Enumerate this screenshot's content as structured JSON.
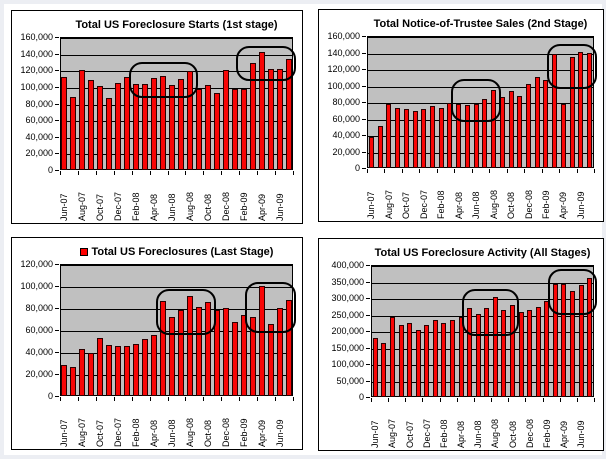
{
  "page": {
    "background": "#eceef3",
    "panel_background": "#ffffff"
  },
  "colors": {
    "bar_fill": "#ff0000",
    "bar_border": "#2a0000",
    "plot_background": "#c0c0c0",
    "gridline": "#000000",
    "annotation_stroke": "#000000",
    "text": "#000000"
  },
  "chart_data": [
    {
      "type": "bar",
      "title": "Total US Foreclosure Starts (1st stage)",
      "has_legend_marker": false,
      "categories": [
        "Jun-07",
        "Jul-07",
        "Aug-07",
        "Sep-07",
        "Oct-07",
        "Nov-07",
        "Dec-07",
        "Jan-08",
        "Feb-08",
        "Mar-08",
        "Apr-08",
        "May-08",
        "Jun-08",
        "Jul-08",
        "Aug-08",
        "Sep-08",
        "Oct-08",
        "Nov-08",
        "Dec-08",
        "Jan-09",
        "Feb-09",
        "Mar-09",
        "Apr-09",
        "May-09",
        "Jun-09",
        "Jul-09"
      ],
      "values": [
        112000,
        88000,
        120000,
        108000,
        101000,
        87000,
        105000,
        112000,
        104000,
        104000,
        111000,
        113000,
        102000,
        110000,
        119000,
        98000,
        102000,
        93000,
        120000,
        97000,
        97000,
        129000,
        142000,
        121000,
        121000,
        134000
      ],
      "x_tick_labels": [
        "Jun-07",
        "Aug-07",
        "Oct-07",
        "Dec-07",
        "Feb-08",
        "Apr-08",
        "Jun-08",
        "Aug-08",
        "Oct-08",
        "Dec-08",
        "Feb-09",
        "Apr-09",
        "Jun-09"
      ],
      "ylim": [
        0,
        160000
      ],
      "ytick_step": 20000,
      "y_tick_labels": [
        "160,000",
        "140,000",
        "120,000",
        "100,000",
        "80,000",
        "60,000",
        "40,000",
        "20,000",
        "0"
      ],
      "grid": true,
      "legend_position": "none",
      "ylabel_width": 48,
      "annotations": [
        {
          "from_bar": 9,
          "to_bar": 15,
          "top": 130000,
          "bottom": 87000
        },
        {
          "from_bar": 21,
          "to_bar": 26,
          "top": 149000,
          "bottom": 107000
        }
      ]
    },
    {
      "type": "bar",
      "title": "Total Notice-of-Trustee Sales (2nd Stage)",
      "has_legend_marker": false,
      "categories": [
        "Jun-07",
        "Jul-07",
        "Aug-07",
        "Sep-07",
        "Oct-07",
        "Nov-07",
        "Dec-07",
        "Jan-08",
        "Feb-08",
        "Mar-08",
        "Apr-08",
        "May-08",
        "Jun-08",
        "Jul-08",
        "Aug-08",
        "Sep-08",
        "Oct-08",
        "Nov-08",
        "Dec-08",
        "Jan-09",
        "Feb-09",
        "Mar-09",
        "Apr-09",
        "May-09",
        "Jun-09",
        "Jul-09"
      ],
      "values": [
        37000,
        51000,
        77000,
        73000,
        71000,
        69000,
        71000,
        75000,
        73000,
        79000,
        77000,
        76000,
        77000,
        84000,
        95000,
        86000,
        93000,
        87000,
        102000,
        110000,
        107000,
        138000,
        77000,
        134000,
        141000,
        139000
      ],
      "x_tick_labels": [
        "Jun-07",
        "Aug-07",
        "Oct-07",
        "Dec-07",
        "Feb-08",
        "Apr-08",
        "Jun-08",
        "Aug-08",
        "Oct-08",
        "Dec-08",
        "Feb-09",
        "Apr-09",
        "Jun-09"
      ],
      "ylim": [
        0,
        160000
      ],
      "ytick_step": 20000,
      "y_tick_labels": [
        "160,000",
        "140,000",
        "120,000",
        "100,000",
        "80,000",
        "60,000",
        "40,000",
        "20,000",
        "0"
      ],
      "grid": true,
      "legend_position": "none",
      "ylabel_width": 48,
      "annotations": [
        {
          "from_bar": 11,
          "to_bar": 15,
          "top": 108000,
          "bottom": 56000
        },
        {
          "from_bar": 22,
          "to_bar": 26,
          "top": 150000,
          "bottom": 95000
        }
      ]
    },
    {
      "type": "bar",
      "title": "Total US Foreclosures (Last Stage)",
      "has_legend_marker": true,
      "categories": [
        "Jun-07",
        "Jul-07",
        "Aug-07",
        "Sep-07",
        "Oct-07",
        "Nov-07",
        "Dec-07",
        "Jan-08",
        "Feb-08",
        "Mar-08",
        "Apr-08",
        "May-08",
        "Jun-08",
        "Jul-08",
        "Aug-08",
        "Sep-08",
        "Oct-08",
        "Nov-08",
        "Dec-08",
        "Jan-09",
        "Feb-09",
        "Mar-09",
        "Apr-09",
        "May-09",
        "Jun-09",
        "Jul-09"
      ],
      "values": [
        28000,
        26000,
        43000,
        39000,
        53000,
        46000,
        45000,
        45000,
        47000,
        52000,
        55000,
        86000,
        72000,
        78000,
        91000,
        81000,
        85000,
        78000,
        80000,
        67000,
        74000,
        72000,
        100000,
        65000,
        80000,
        87000
      ],
      "x_tick_labels": [
        "Jun-07",
        "Aug-07",
        "Oct-07",
        "Dec-07",
        "Feb-08",
        "Apr-08",
        "Jun-08",
        "Aug-08",
        "Oct-08",
        "Dec-08",
        "Feb-09",
        "Apr-09",
        "Jun-09"
      ],
      "ylim": [
        0,
        120000
      ],
      "ytick_step": 20000,
      "y_tick_labels": [
        "120,000",
        "100,000",
        "80,000",
        "60,000",
        "40,000",
        "20,000",
        "0"
      ],
      "grid": true,
      "legend_position": "top",
      "ylabel_width": 48,
      "annotations": [
        {
          "from_bar": 12,
          "to_bar": 17,
          "top": 97000,
          "bottom": 55000
        },
        {
          "from_bar": 22,
          "to_bar": 26,
          "top": 104000,
          "bottom": 58000
        }
      ]
    },
    {
      "type": "bar",
      "title": "Total US Foreclosure Activity (All Stages)",
      "has_legend_marker": false,
      "categories": [
        "Jun-07",
        "Jul-07",
        "Aug-07",
        "Sep-07",
        "Oct-07",
        "Nov-07",
        "Dec-07",
        "Jan-08",
        "Feb-08",
        "Mar-08",
        "Apr-08",
        "May-08",
        "Jun-08",
        "Jul-08",
        "Aug-08",
        "Sep-08",
        "Oct-08",
        "Nov-08",
        "Dec-08",
        "Jan-09",
        "Feb-09",
        "Mar-09",
        "Apr-09",
        "May-09",
        "Jun-09",
        "Jul-09"
      ],
      "values": [
        178000,
        165000,
        242000,
        219000,
        225000,
        203000,
        219000,
        233000,
        225000,
        233000,
        242000,
        271000,
        252000,
        271000,
        303000,
        265000,
        280000,
        258000,
        264000,
        274000,
        291000,
        341000,
        343000,
        322000,
        338000,
        361000
      ],
      "x_tick_labels": [
        "Jun-07",
        "Aug-07",
        "Oct-07",
        "Dec-07",
        "Feb-08",
        "Apr-08",
        "Jun-08",
        "Aug-08",
        "Oct-08",
        "Dec-08",
        "Feb-09",
        "Apr-09",
        "Jun-09"
      ],
      "ylim": [
        0,
        400000
      ],
      "ytick_step": 50000,
      "y_tick_labels": [
        "400,000",
        "350,000",
        "300,000",
        "250,000",
        "200,000",
        "150,000",
        "100,000",
        "50,000",
        "0"
      ],
      "grid": true,
      "legend_position": "none",
      "ylabel_width": 52,
      "annotations": [
        {
          "from_bar": 12,
          "to_bar": 17,
          "top": 327000,
          "bottom": 185000
        },
        {
          "from_bar": 22,
          "to_bar": 26,
          "top": 388000,
          "bottom": 250000
        }
      ]
    }
  ]
}
